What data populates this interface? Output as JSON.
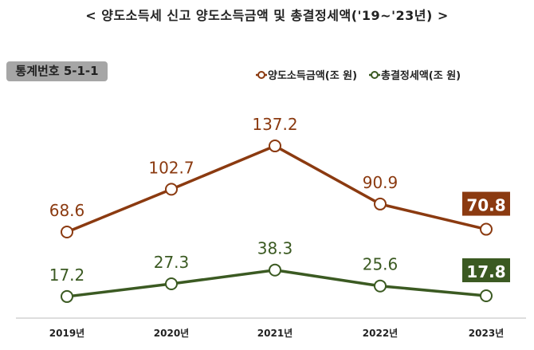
{
  "chart_data": {
    "type": "line",
    "title": "< 양도소득세 신고 양도소득금액 및 총결정세액('19~'23년) >",
    "badge": "통계번호 5-1-1",
    "categories": [
      "2019년",
      "2020년",
      "2021년",
      "2022년",
      "2023년"
    ],
    "series": [
      {
        "name": "양도소득금액(조 원)",
        "color": "#8b3a10",
        "values": [
          68.6,
          102.7,
          137.2,
          90.9,
          70.8
        ],
        "labels": [
          "68.6",
          "102.7",
          "137.2",
          "90.9",
          "70.8"
        ]
      },
      {
        "name": "총결정세액(조 원)",
        "color": "#3b5a22",
        "values": [
          17.2,
          27.3,
          38.3,
          25.6,
          17.8
        ],
        "labels": [
          "17.2",
          "27.3",
          "38.3",
          "25.6",
          "17.8"
        ]
      }
    ],
    "legend": "top-right",
    "grid": false,
    "ylim": [
      0,
      150
    ]
  }
}
